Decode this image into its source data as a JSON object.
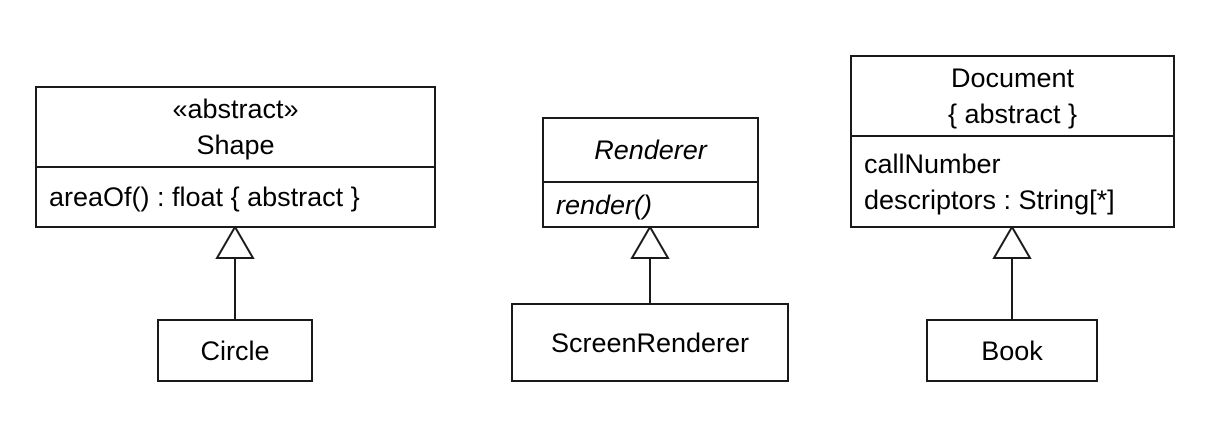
{
  "classes": {
    "shape": {
      "stereotype": "«abstract»",
      "name": "Shape",
      "operations": [
        "areaOf() : float { abstract }"
      ]
    },
    "circle": {
      "name": "Circle"
    },
    "renderer": {
      "name": "Renderer",
      "operations": [
        "render()"
      ]
    },
    "screen_renderer": {
      "name": "ScreenRenderer"
    },
    "document": {
      "name": "Document",
      "constraint": "{ abstract }",
      "attributes": [
        "callNumber",
        "descriptors : String[*]"
      ]
    },
    "book": {
      "name": "Book"
    }
  },
  "relationships": [
    {
      "type": "generalization",
      "from": "Circle",
      "to": "Shape"
    },
    {
      "type": "generalization",
      "from": "ScreenRenderer",
      "to": "Renderer"
    },
    {
      "type": "generalization",
      "from": "Book",
      "to": "Document"
    }
  ],
  "colors": {
    "line": "#1a1a1a",
    "background": "#ffffff"
  }
}
